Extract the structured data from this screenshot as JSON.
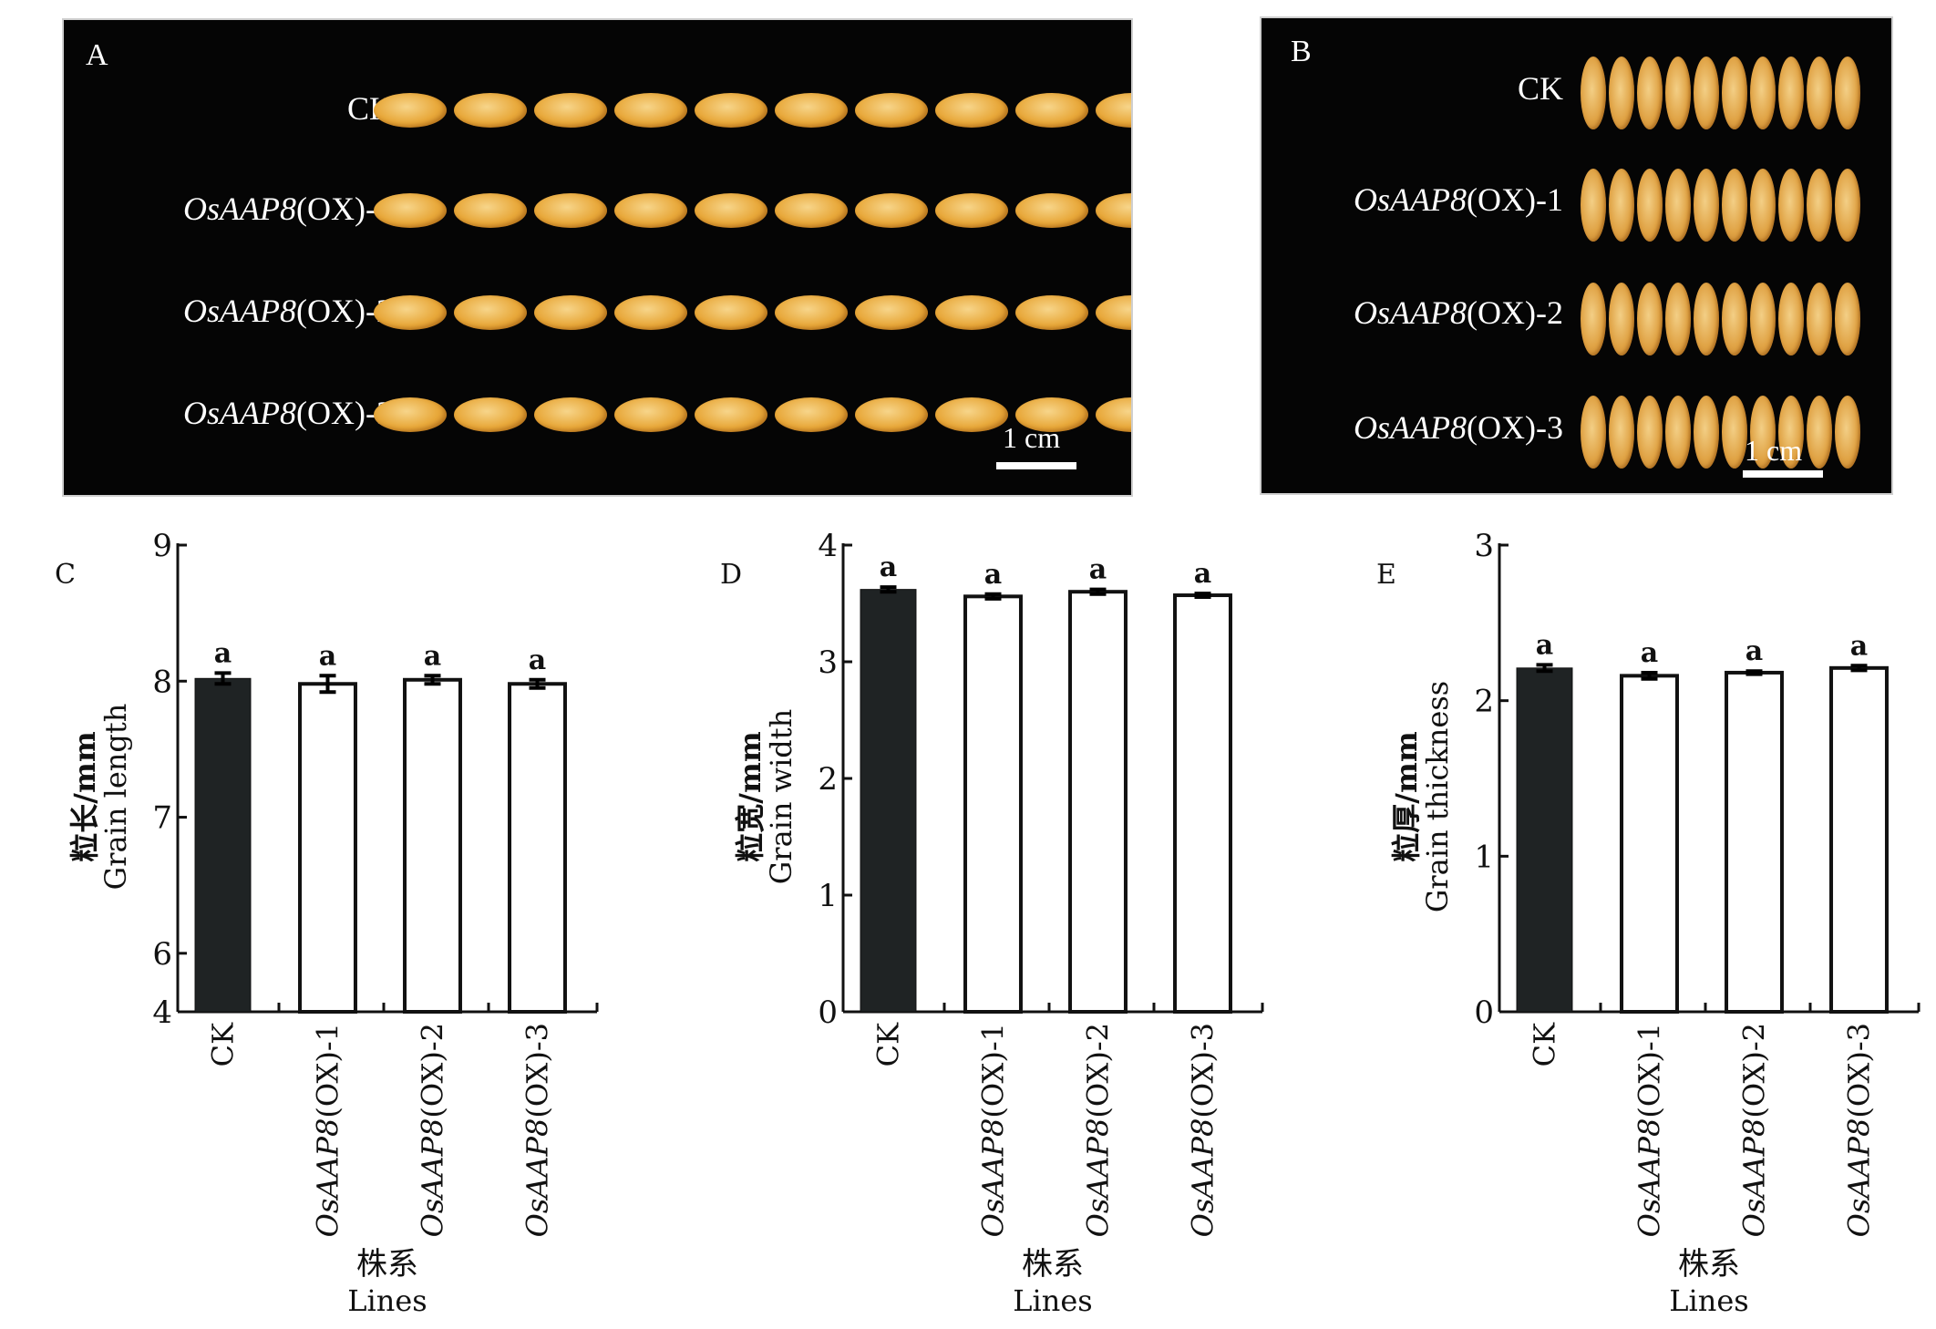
{
  "figure": {
    "photo_a": {
      "letter": "A",
      "rows": [
        {
          "prefix": "",
          "gene": "",
          "label": "CK"
        },
        {
          "prefix": "",
          "gene": "OsAAP8",
          "label": "(OX)-1"
        },
        {
          "prefix": "",
          "gene": "OsAAP8",
          "label": "(OX)-2"
        },
        {
          "prefix": "",
          "gene": "OsAAP8",
          "label": "(OX)-3"
        }
      ],
      "grains_per_row": 10,
      "scale_label": "1 cm"
    },
    "photo_b": {
      "letter": "B",
      "rows": [
        {
          "gene": "",
          "label": "CK"
        },
        {
          "gene": "OsAAP8",
          "label": "(OX)-1"
        },
        {
          "gene": "OsAAP8",
          "label": "(OX)-2"
        },
        {
          "gene": "OsAAP8",
          "label": "(OX)-3"
        }
      ],
      "grains_per_row": 10,
      "scale_label": "1 cm"
    }
  },
  "colors": {
    "ck_bar": "#1f2324",
    "ox_bar": "#ffffff",
    "axis": "#111111"
  },
  "chart_data": [
    {
      "panel": "C",
      "type": "bar",
      "categories": [
        "CK",
        "OsAAP8(OX)-1",
        "OsAAP8(OX)-2",
        "OsAAP8(OX)-3"
      ],
      "category_gene": [
        "",
        "OsAAP8",
        "OsAAP8",
        "OsAAP8"
      ],
      "category_suffix": [
        "CK",
        "(OX)-1",
        "(OX)-2",
        "(OX)-3"
      ],
      "values": [
        8.02,
        7.98,
        8.01,
        7.98
      ],
      "errors": [
        0.04,
        0.06,
        0.03,
        0.03
      ],
      "significance": [
        "a",
        "a",
        "a",
        "a"
      ],
      "ylabel_cn": "粒长/mm",
      "ylabel_en": "Grain length",
      "xlabel_cn": "株系",
      "xlabel_en": "Lines",
      "ylim": [
        4,
        9
      ],
      "yticks": [
        4,
        6,
        7,
        8,
        9
      ],
      "axis_break": true,
      "grid": false
    },
    {
      "panel": "D",
      "type": "bar",
      "categories": [
        "CK",
        "OsAAP8(OX)-1",
        "OsAAP8(OX)-2",
        "OsAAP8(OX)-3"
      ],
      "category_gene": [
        "",
        "OsAAP8",
        "OsAAP8",
        "OsAAP8"
      ],
      "category_suffix": [
        "CK",
        "(OX)-1",
        "(OX)-2",
        "(OX)-3"
      ],
      "values": [
        3.62,
        3.56,
        3.6,
        3.57
      ],
      "errors": [
        0.02,
        0.02,
        0.02,
        0.015
      ],
      "significance": [
        "a",
        "a",
        "a",
        "a"
      ],
      "ylabel_cn": "粒宽/mm",
      "ylabel_en": "Grain width",
      "xlabel_cn": "株系",
      "xlabel_en": "Lines",
      "ylim": [
        0,
        4
      ],
      "yticks": [
        0,
        1,
        2,
        3,
        4
      ],
      "axis_break": false,
      "grid": false
    },
    {
      "panel": "E",
      "type": "bar",
      "categories": [
        "CK",
        "OsAAP8(OX)-1",
        "OsAAP8(OX)-2",
        "OsAAP8(OX)-3"
      ],
      "category_gene": [
        "",
        "OsAAP8",
        "OsAAP8",
        "OsAAP8"
      ],
      "category_suffix": [
        "CK",
        "(OX)-1",
        "(OX)-2",
        "(OX)-3"
      ],
      "values": [
        2.21,
        2.16,
        2.18,
        2.21
      ],
      "errors": [
        0.02,
        0.02,
        0.01,
        0.015
      ],
      "significance": [
        "a",
        "a",
        "a",
        "a"
      ],
      "ylabel_cn": "粒厚/mm",
      "ylabel_en": "Grain thickness",
      "xlabel_cn": "株系",
      "xlabel_en": "Lines",
      "ylim": [
        0,
        3
      ],
      "yticks": [
        0,
        1,
        2,
        3
      ],
      "axis_break": false,
      "grid": false
    }
  ]
}
